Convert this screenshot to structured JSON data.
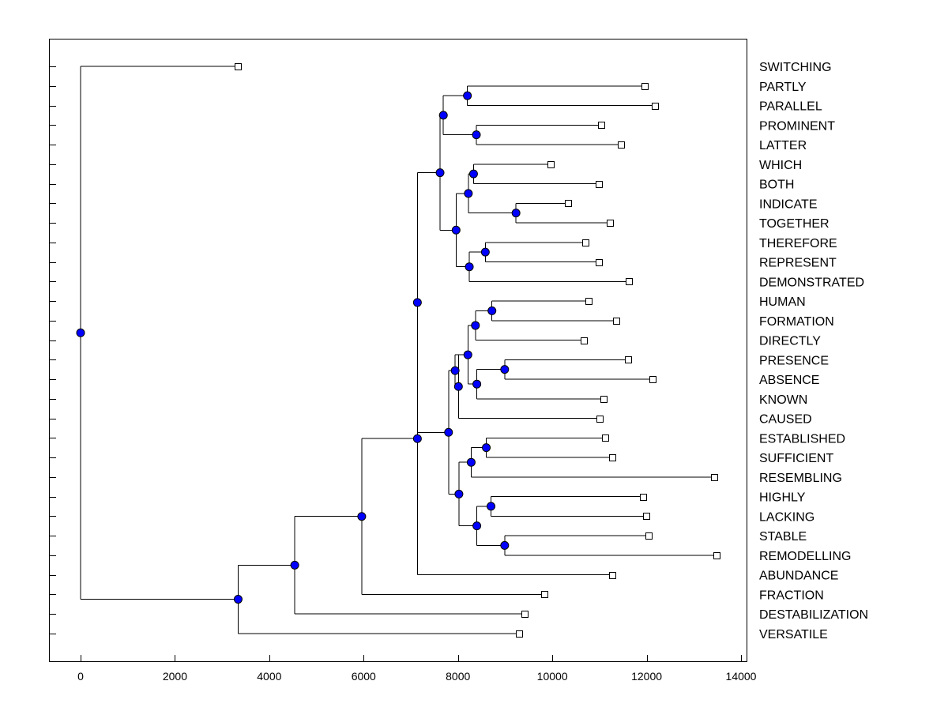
{
  "chart_data": {
    "type": "dendrogram",
    "orientation": "horizontal",
    "xlim": [
      -700,
      14100
    ],
    "x_ticks": [
      0,
      2000,
      4000,
      6000,
      8000,
      10000,
      12000,
      14000
    ],
    "x_tick_labels": [
      "0",
      "2000",
      "4000",
      "6000",
      "8000",
      "10000",
      "12000",
      "14000"
    ],
    "leaves": [
      {
        "name": "SWITCHING",
        "x": 3340
      },
      {
        "name": "PARTLY",
        "x": 11950
      },
      {
        "name": "PARALLEL",
        "x": 12170
      },
      {
        "name": "PROMINENT",
        "x": 11040
      },
      {
        "name": "LATTER",
        "x": 11460
      },
      {
        "name": "WHICH",
        "x": 9960
      },
      {
        "name": "BOTH",
        "x": 10980
      },
      {
        "name": "INDICATE",
        "x": 10330
      },
      {
        "name": "TOGETHER",
        "x": 11220
      },
      {
        "name": "THEREFORE",
        "x": 10700
      },
      {
        "name": "REPRESENT",
        "x": 10990
      },
      {
        "name": "DEMONSTRATED",
        "x": 11630
      },
      {
        "name": "HUMAN",
        "x": 10760
      },
      {
        "name": "FORMATION",
        "x": 11360
      },
      {
        "name": "DIRECTLY",
        "x": 10660
      },
      {
        "name": "PRESENCE",
        "x": 11600
      },
      {
        "name": "ABSENCE",
        "x": 12120
      },
      {
        "name": "KNOWN",
        "x": 11080
      },
      {
        "name": "CAUSED",
        "x": 11000
      },
      {
        "name": "ESTABLISHED",
        "x": 11120
      },
      {
        "name": "SUFFICIENT",
        "x": 11270
      },
      {
        "name": "RESEMBLING",
        "x": 13430
      },
      {
        "name": "HIGHLY",
        "x": 11920
      },
      {
        "name": "LACKING",
        "x": 11990
      },
      {
        "name": "STABLE",
        "x": 12040
      },
      {
        "name": "REMODELLING",
        "x": 13480
      },
      {
        "name": "ABUNDANCE",
        "x": 11270
      },
      {
        "name": "FRACTION",
        "x": 9830
      },
      {
        "name": "DESTABILIZATION",
        "x": 9410
      },
      {
        "name": "VERSATILE",
        "x": 9290
      }
    ],
    "merges": [
      {
        "id": "n1",
        "x": 8200,
        "children": [
          "PARTLY",
          "PARALLEL"
        ]
      },
      {
        "id": "n2",
        "x": 8390,
        "children": [
          "PROMINENT",
          "LATTER"
        ]
      },
      {
        "id": "n3",
        "x": 7690,
        "children": [
          "n1",
          "n2"
        ]
      },
      {
        "id": "n4",
        "x": 8330,
        "children": [
          "WHICH",
          "BOTH"
        ]
      },
      {
        "id": "n5",
        "x": 9230,
        "children": [
          "INDICATE",
          "TOGETHER"
        ]
      },
      {
        "id": "n6",
        "x": 8220,
        "children": [
          "n4",
          "n5"
        ]
      },
      {
        "id": "n7",
        "x": 8580,
        "children": [
          "THEREFORE",
          "REPRESENT"
        ]
      },
      {
        "id": "n8",
        "x": 8240,
        "children": [
          "n7",
          "DEMONSTRATED"
        ]
      },
      {
        "id": "n9",
        "x": 7960,
        "children": [
          "n6",
          "n8"
        ]
      },
      {
        "id": "n10",
        "x": 8720,
        "children": [
          "HUMAN",
          "FORMATION"
        ]
      },
      {
        "id": "n11",
        "x": 8370,
        "children": [
          "n10",
          "DIRECTLY"
        ]
      },
      {
        "id": "n12",
        "x": 8990,
        "children": [
          "PRESENCE",
          "ABSENCE"
        ]
      },
      {
        "id": "n13",
        "x": 8400,
        "children": [
          "n12",
          "KNOWN"
        ]
      },
      {
        "id": "n14",
        "x": 8210,
        "children": [
          "n11",
          "n13"
        ]
      },
      {
        "id": "n15",
        "x": 8010,
        "children": [
          "n14",
          "CAUSED"
        ]
      },
      {
        "id": "n16",
        "x": 7940,
        "children": [
          "n15",
          "n14"
        ]
      },
      {
        "id": "n17",
        "x": 8600,
        "children": [
          "ESTABLISHED",
          "SUFFICIENT"
        ]
      },
      {
        "id": "n18",
        "x": 8280,
        "children": [
          "n17",
          "RESEMBLING"
        ]
      },
      {
        "id": "n19",
        "x": 8700,
        "children": [
          "HIGHLY",
          "LACKING"
        ]
      },
      {
        "id": "n20",
        "x": 8990,
        "children": [
          "STABLE",
          "REMODELLING"
        ]
      },
      {
        "id": "n21",
        "x": 8400,
        "children": [
          "n19",
          "n20"
        ]
      },
      {
        "id": "n22",
        "x": 8020,
        "children": [
          "n18",
          "n21"
        ]
      },
      {
        "id": "n23",
        "x": 7800,
        "children": [
          "n16",
          "n22"
        ]
      },
      {
        "id": "n24",
        "x": 7620,
        "children": [
          "n3",
          "n9"
        ]
      },
      {
        "id": "n25",
        "x": 7140,
        "children": [
          "n24",
          "n23"
        ]
      },
      {
        "id": "n26",
        "x": 7140,
        "children": [
          "n25",
          "ABUNDANCE"
        ]
      },
      {
        "id": "n27",
        "x": 5960,
        "children": [
          "n26",
          "FRACTION"
        ]
      },
      {
        "id": "n28",
        "x": 4540,
        "children": [
          "n27",
          "DESTABILIZATION"
        ]
      },
      {
        "id": "n29",
        "x": 3340,
        "children": [
          "n28",
          "VERSATILE"
        ]
      },
      {
        "id": "root",
        "x": 0,
        "children": [
          "SWITCHING",
          "n29"
        ]
      }
    ],
    "node_marker_color": "#0000ff",
    "leaf_marker_color": "#ffffff",
    "line_color": "#000000"
  }
}
